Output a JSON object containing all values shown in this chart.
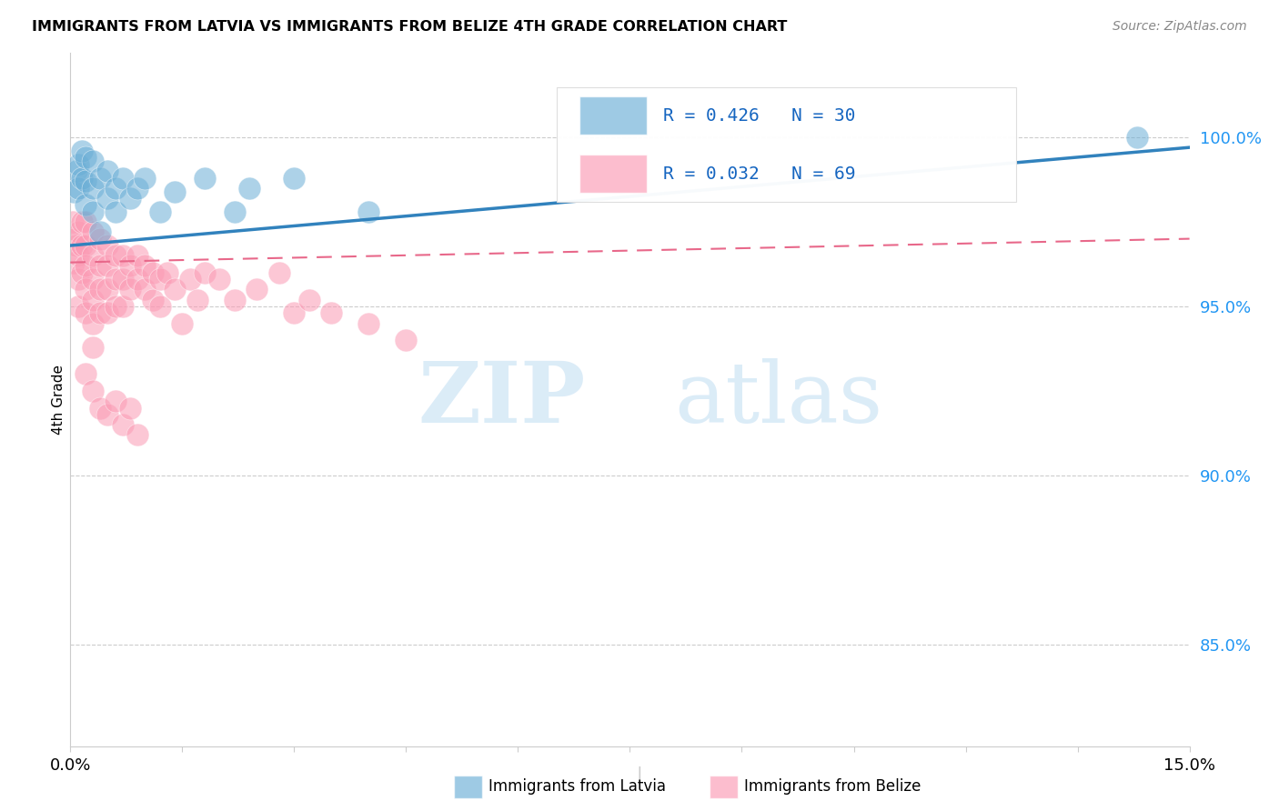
{
  "title": "IMMIGRANTS FROM LATVIA VS IMMIGRANTS FROM BELIZE 4TH GRADE CORRELATION CHART",
  "source": "Source: ZipAtlas.com",
  "ylabel": "4th Grade",
  "yaxis_labels": [
    "100.0%",
    "95.0%",
    "90.0%",
    "85.0%"
  ],
  "yaxis_values": [
    1.0,
    0.95,
    0.9,
    0.85
  ],
  "xlim": [
    0.0,
    0.15
  ],
  "ylim": [
    0.82,
    1.025
  ],
  "latvia_color": "#6baed6",
  "belize_color": "#fb9ab4",
  "latvia_line": [
    0.0,
    0.15,
    0.968,
    0.997
  ],
  "belize_line": [
    0.0,
    0.15,
    0.963,
    0.97
  ],
  "latvia_R": "0.426",
  "latvia_N": "30",
  "belize_R": "0.032",
  "belize_N": "69",
  "legend_label_latvia": "Immigrants from Latvia",
  "legend_label_belize": "Immigrants from Belize",
  "latvia_x": [
    0.0005,
    0.0008,
    0.001,
    0.001,
    0.0015,
    0.0015,
    0.002,
    0.002,
    0.002,
    0.003,
    0.003,
    0.003,
    0.004,
    0.004,
    0.005,
    0.005,
    0.006,
    0.006,
    0.007,
    0.008,
    0.009,
    0.01,
    0.012,
    0.014,
    0.018,
    0.022,
    0.024,
    0.03,
    0.04,
    0.143
  ],
  "latvia_y": [
    0.984,
    0.99,
    0.992,
    0.985,
    0.996,
    0.988,
    0.994,
    0.987,
    0.98,
    0.993,
    0.985,
    0.978,
    0.988,
    0.972,
    0.99,
    0.982,
    0.985,
    0.978,
    0.988,
    0.982,
    0.985,
    0.988,
    0.978,
    0.984,
    0.988,
    0.978,
    0.985,
    0.988,
    0.978,
    1.0
  ],
  "belize_x": [
    0.0003,
    0.0005,
    0.0005,
    0.0007,
    0.001,
    0.001,
    0.001,
    0.001,
    0.0015,
    0.0015,
    0.0015,
    0.002,
    0.002,
    0.002,
    0.002,
    0.002,
    0.003,
    0.003,
    0.003,
    0.003,
    0.003,
    0.003,
    0.004,
    0.004,
    0.004,
    0.004,
    0.005,
    0.005,
    0.005,
    0.005,
    0.006,
    0.006,
    0.006,
    0.007,
    0.007,
    0.007,
    0.008,
    0.008,
    0.009,
    0.009,
    0.01,
    0.01,
    0.011,
    0.011,
    0.012,
    0.012,
    0.013,
    0.014,
    0.015,
    0.016,
    0.017,
    0.018,
    0.02,
    0.022,
    0.025,
    0.028,
    0.03,
    0.032,
    0.035,
    0.04,
    0.045,
    0.002,
    0.003,
    0.004,
    0.005,
    0.006,
    0.007,
    0.008,
    0.009
  ],
  "belize_y": [
    0.975,
    0.97,
    0.963,
    0.968,
    0.972,
    0.965,
    0.958,
    0.95,
    0.975,
    0.968,
    0.96,
    0.975,
    0.968,
    0.962,
    0.955,
    0.948,
    0.972,
    0.965,
    0.958,
    0.952,
    0.945,
    0.938,
    0.97,
    0.962,
    0.955,
    0.948,
    0.968,
    0.962,
    0.955,
    0.948,
    0.965,
    0.958,
    0.95,
    0.965,
    0.958,
    0.95,
    0.962,
    0.955,
    0.965,
    0.958,
    0.962,
    0.955,
    0.96,
    0.952,
    0.958,
    0.95,
    0.96,
    0.955,
    0.945,
    0.958,
    0.952,
    0.96,
    0.958,
    0.952,
    0.955,
    0.96,
    0.948,
    0.952,
    0.948,
    0.945,
    0.94,
    0.93,
    0.925,
    0.92,
    0.918,
    0.922,
    0.915,
    0.92,
    0.912
  ]
}
